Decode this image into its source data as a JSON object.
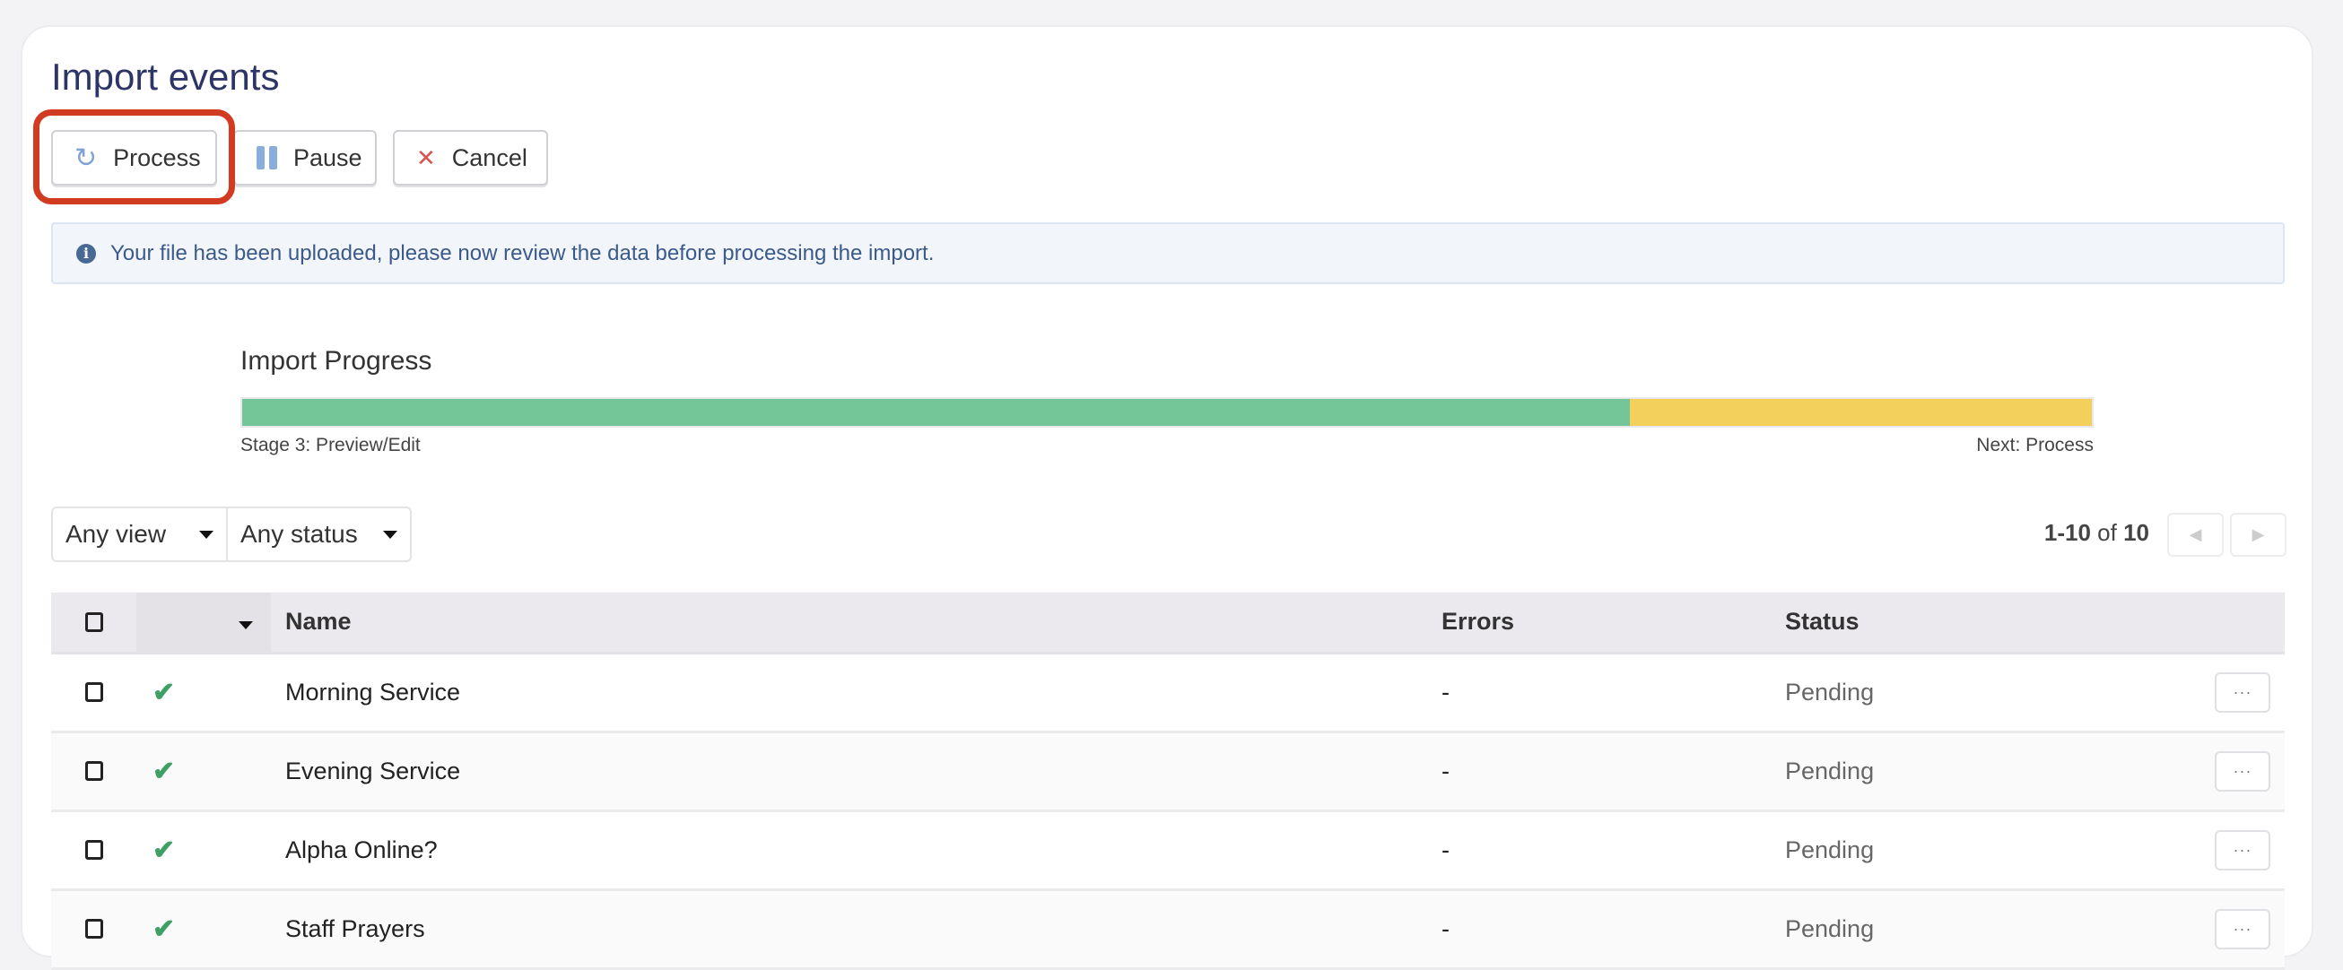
{
  "page": {
    "title": "Import events"
  },
  "toolbar": {
    "process_label": "Process",
    "pause_label": "Pause",
    "cancel_label": "Cancel"
  },
  "info": {
    "message": "Your file has been uploaded, please now review the data before processing the import."
  },
  "progress": {
    "title": "Import Progress",
    "current_stage": "Stage 3: Preview/Edit",
    "next_stage": "Next: Process",
    "fraction_complete": 0.75,
    "colors": {
      "complete": "#74c597",
      "remaining": "#f3cf5b"
    }
  },
  "filters": {
    "view": "Any view",
    "status": "Any status"
  },
  "pagination": {
    "range": "1-10",
    "of": "of",
    "total": "10"
  },
  "table": {
    "headers": {
      "name": "Name",
      "errors": "Errors",
      "status": "Status"
    },
    "rows": [
      {
        "name": "Morning Service",
        "errors": "-",
        "status": "Pending",
        "more": "···"
      },
      {
        "name": "Evening Service",
        "errors": "-",
        "status": "Pending",
        "more": "···"
      },
      {
        "name": "Alpha Online?",
        "errors": "-",
        "status": "Pending",
        "more": "···"
      },
      {
        "name": "Staff Prayers",
        "errors": "-",
        "status": "Pending",
        "more": "···"
      }
    ]
  },
  "highlight_color": "#d13b22"
}
